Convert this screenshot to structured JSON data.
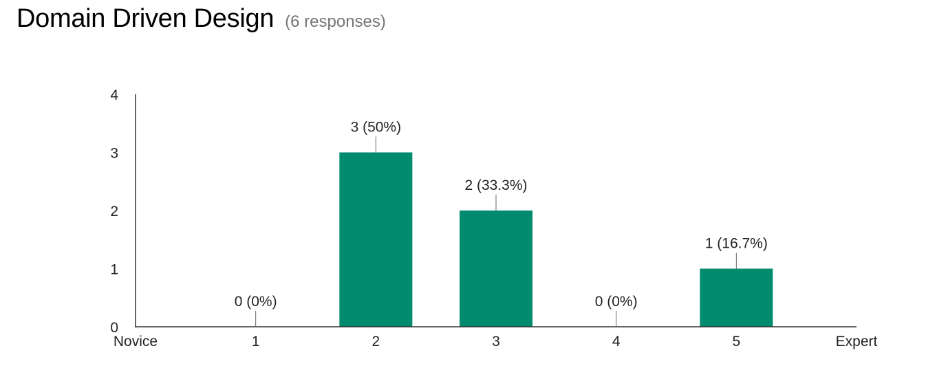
{
  "header": {
    "title": "Domain Driven Design",
    "subtitle": "(6 responses)"
  },
  "colors": {
    "bar": "#008b6f",
    "axis": "#333333",
    "leader": "#666666"
  },
  "chart_data": {
    "type": "bar",
    "title": "Domain Driven Design",
    "subtitle": "(6 responses)",
    "categories": [
      "1",
      "2",
      "3",
      "4",
      "5"
    ],
    "values": [
      0,
      3,
      2,
      0,
      1
    ],
    "data_labels": [
      "0 (0%)",
      "3 (50%)",
      "2 (33.3%)",
      "0 (0%)",
      "1 (16.7%)"
    ],
    "x_min_label": "Novice",
    "x_max_label": "Expert",
    "yticks": [
      "0",
      "1",
      "2",
      "3",
      "4"
    ],
    "ylim": [
      0,
      4
    ],
    "grid": false,
    "legend": "none"
  }
}
